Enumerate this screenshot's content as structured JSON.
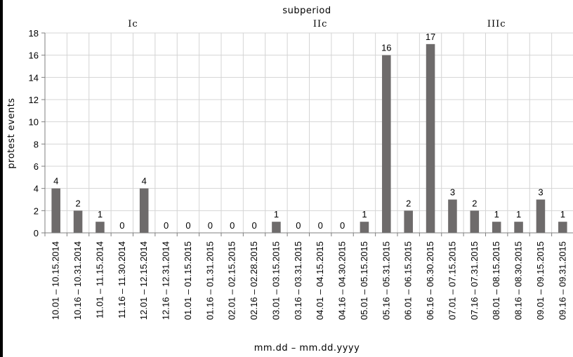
{
  "chart_data": {
    "type": "bar",
    "title": "",
    "xlabel": "mm.dd – mm.dd.yyyy",
    "ylabel": "protest events",
    "top_axis_label": "subperiod",
    "subperiods": [
      {
        "label": "Ic",
        "from": 0,
        "to": 8
      },
      {
        "label": "IIc",
        "from": 8,
        "to": 17
      },
      {
        "label": "IIIc",
        "from": 17,
        "to": 24
      }
    ],
    "categories": [
      "10.01 – 10.15.2014",
      "10.16 – 10.31.2014",
      "11.01 – 11.15.2014",
      "11.16 – 11.30.2014",
      "12.01 – 12.15.2014",
      "12.16 – 12.31.2014",
      "01.01 – 01.15.2015",
      "01.16 – 01.31.2015",
      "02.01 – 02.15.2015",
      "02.16 – 02.28.2015",
      "03.01 – 03.15.2015",
      "03.16 – 03.31.2015",
      "04.01 – 04.15.2015",
      "04.16 – 04.30.2015",
      "05.01 – 05.15.2015",
      "05.16 – 05.31.2015",
      "06.01 – 06.15.2015",
      "06.16 – 06.30.2015",
      "07.01 – 07.15.2015",
      "07.16 – 07.31.2015",
      "08.01 – 08.15.2015",
      "08.16 – 08.30.2015",
      "09.01 – 09.15.2015",
      "09.16 – 09.31.2015"
    ],
    "values": [
      4,
      2,
      1,
      0,
      4,
      0,
      0,
      0,
      0,
      0,
      1,
      0,
      0,
      0,
      1,
      16,
      2,
      17,
      3,
      2,
      1,
      1,
      3,
      1
    ],
    "ylim": [
      0,
      18
    ],
    "yticks": [
      0,
      2,
      4,
      6,
      8,
      10,
      12,
      14,
      16,
      18
    ],
    "grid": true,
    "legend": "none",
    "colors": {
      "bar": "#6e6b6b",
      "grid": "#d4d4d4",
      "axis": "#7f7f7f"
    }
  }
}
